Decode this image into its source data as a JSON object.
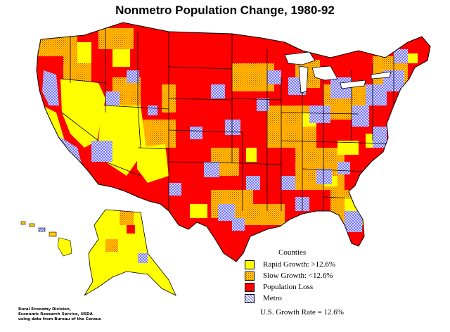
{
  "title": "Nonmetro Population Change, 1980-92",
  "legend": {
    "title": "Counties",
    "items": [
      {
        "label": "Rapid Growth: >12.6%",
        "color": "#ffff00",
        "pattern": "solid"
      },
      {
        "label": "Slow Growth: <12.6%",
        "color": "#ffcc00",
        "pattern": "dotted"
      },
      {
        "label": "Population Loss",
        "color": "#ff0000",
        "pattern": "solid"
      },
      {
        "label": "Metro",
        "color": "#9999ff",
        "pattern": "crosshatch"
      }
    ]
  },
  "growth_rate": "U.S. Growth Rate = 12.6%",
  "credit": [
    "Rural Economy Division,",
    "Economic Research Service, USDA",
    "using data from Bureau of the Census"
  ],
  "colors": {
    "rapid": "#ffff00",
    "slow": "#ffcc00",
    "loss": "#ff0000",
    "metro": "#9999ff",
    "border": "#000000"
  }
}
